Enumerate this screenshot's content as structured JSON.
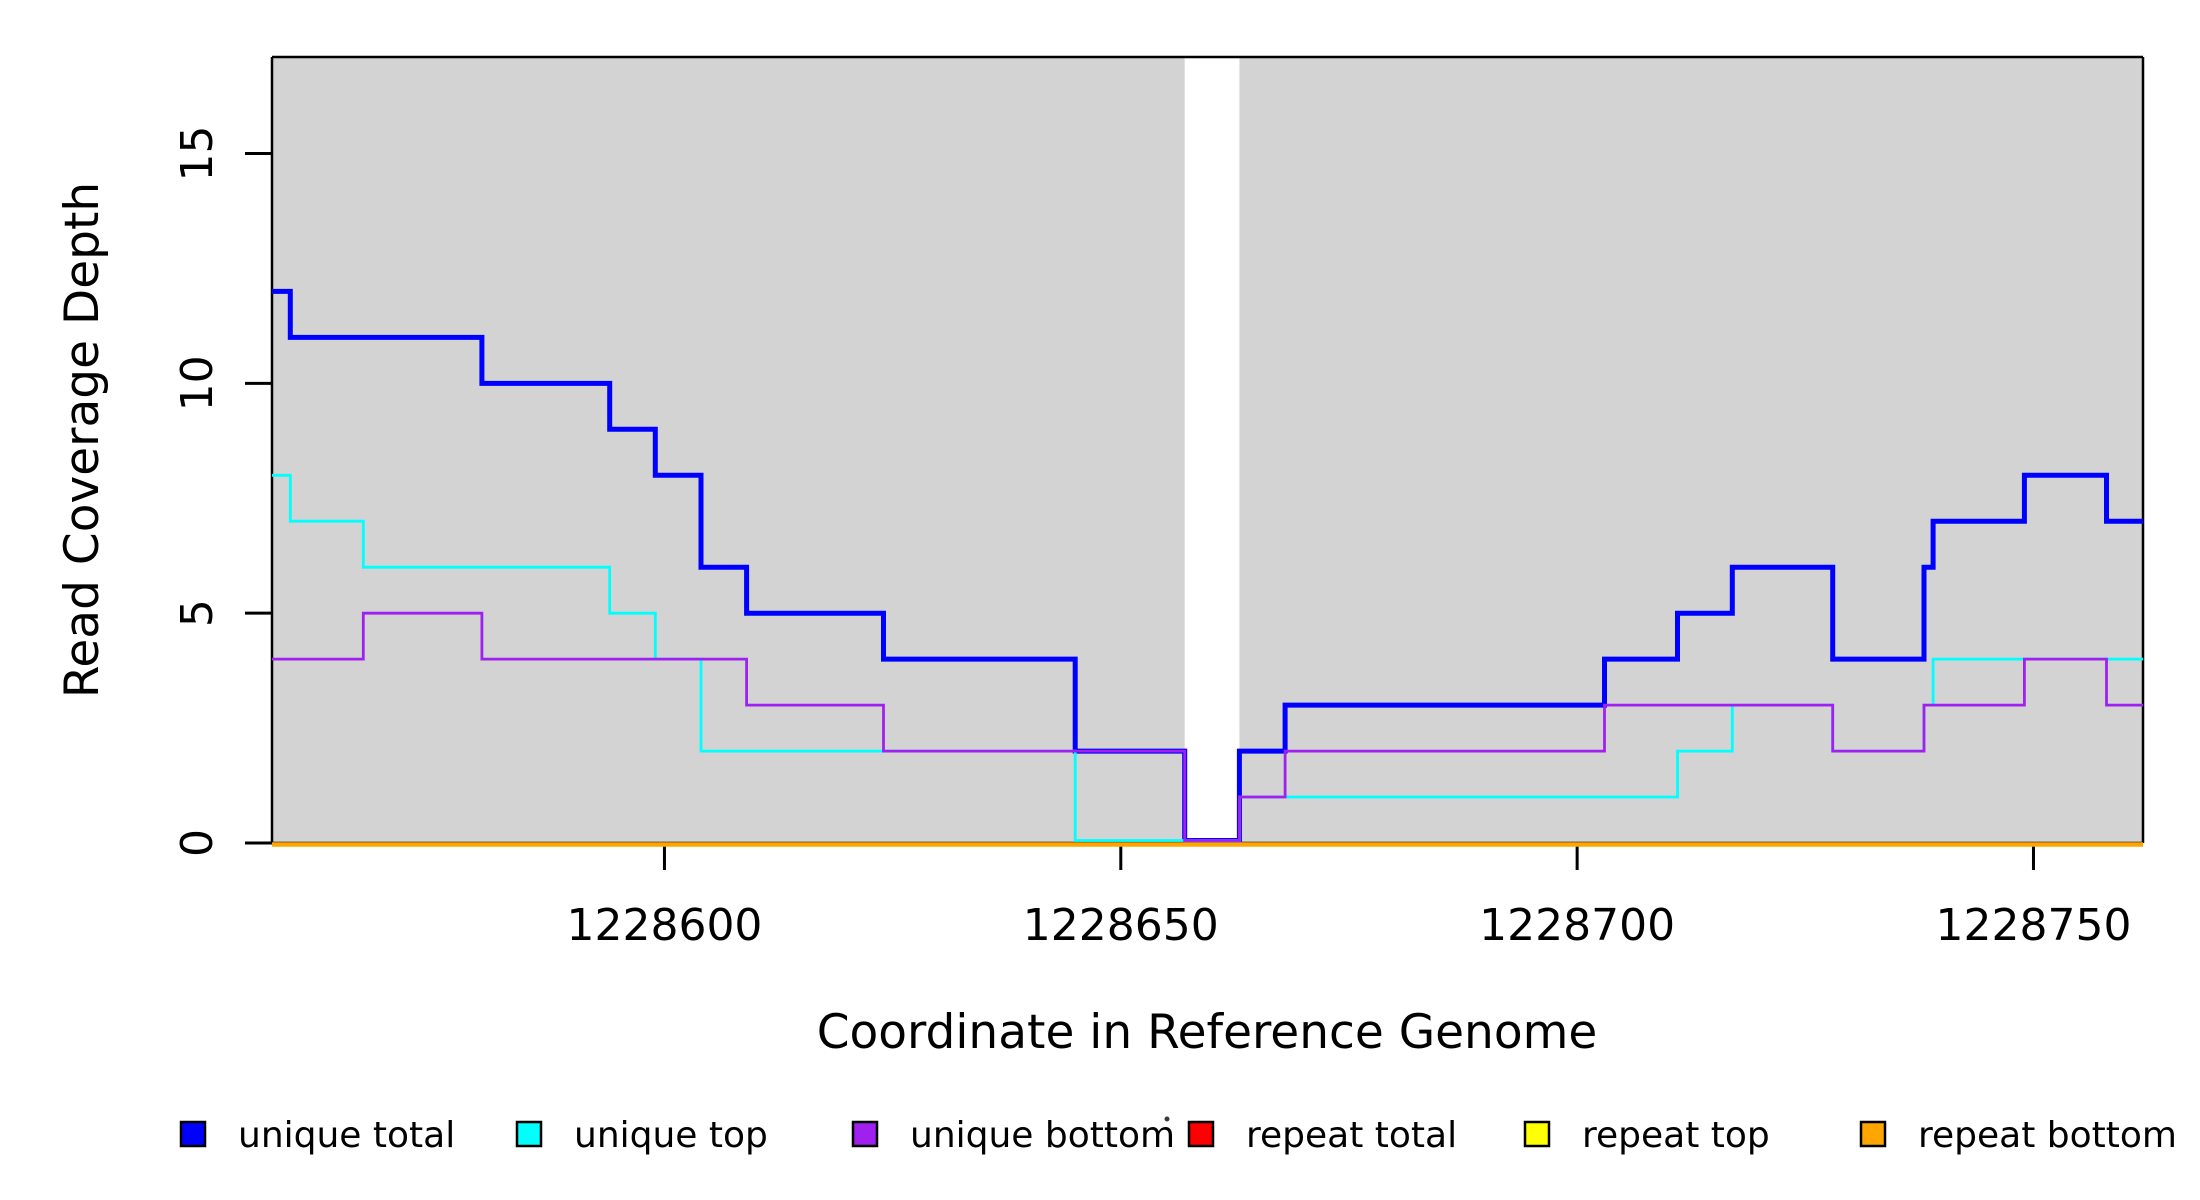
{
  "figure": {
    "background_color": "#ffffff",
    "plot_band_color": "#d3d3d3",
    "axis_color": "#000000"
  },
  "chart_data": {
    "type": "line",
    "style": "step",
    "title": "",
    "xlabel": "Coordinate in Reference Genome",
    "ylabel": "Read Coverage Depth",
    "xlim": [
      1228557,
      1228762
    ],
    "ylim": [
      0,
      17.1
    ],
    "x_ticks": [
      1228600,
      1228650,
      1228700,
      1228750
    ],
    "y_ticks": [
      0,
      5,
      10,
      15
    ],
    "grid": false,
    "legend_position": "bottom",
    "plot_background": "#d3d3d3",
    "gap_band": {
      "from": 1228657,
      "to": 1228663,
      "color": "#ffffff"
    },
    "series": [
      {
        "name": "unique total",
        "color": "#0000ff",
        "group": "unique",
        "width": 5,
        "points": [
          [
            1228557,
            12
          ],
          [
            1228559,
            11
          ],
          [
            1228580,
            10
          ],
          [
            1228594,
            9
          ],
          [
            1228599,
            8
          ],
          [
            1228604,
            6
          ],
          [
            1228609,
            5
          ],
          [
            1228624,
            4
          ],
          [
            1228645,
            2
          ],
          [
            1228657,
            0
          ],
          [
            1228663,
            2
          ],
          [
            1228668,
            3
          ],
          [
            1228703,
            4
          ],
          [
            1228711,
            5
          ],
          [
            1228717,
            6
          ],
          [
            1228728,
            4
          ],
          [
            1228738,
            6
          ],
          [
            1228739,
            7
          ],
          [
            1228749,
            8
          ],
          [
            1228758,
            7
          ],
          [
            1228762,
            7
          ]
        ]
      },
      {
        "name": "unique top",
        "color": "#00ffff",
        "group": "unique",
        "width": 2.8,
        "points": [
          [
            1228557,
            8
          ],
          [
            1228559,
            7
          ],
          [
            1228567,
            6
          ],
          [
            1228594,
            5
          ],
          [
            1228599,
            4
          ],
          [
            1228604,
            2
          ],
          [
            1228645,
            0
          ],
          [
            1228663,
            1
          ],
          [
            1228711,
            2
          ],
          [
            1228717,
            3
          ],
          [
            1228728,
            2
          ],
          [
            1228738,
            3
          ],
          [
            1228739,
            4
          ],
          [
            1228762,
            4
          ]
        ]
      },
      {
        "name": "unique bottom",
        "color": "#a020f0",
        "group": "unique",
        "width": 2.8,
        "points": [
          [
            1228557,
            4
          ],
          [
            1228567,
            5
          ],
          [
            1228580,
            4
          ],
          [
            1228609,
            3
          ],
          [
            1228624,
            2
          ],
          [
            1228657,
            0
          ],
          [
            1228663,
            1
          ],
          [
            1228668,
            2
          ],
          [
            1228703,
            3
          ],
          [
            1228728,
            2
          ],
          [
            1228738,
            3
          ],
          [
            1228749,
            4
          ],
          [
            1228758,
            3
          ],
          [
            1228762,
            3
          ]
        ]
      },
      {
        "name": "repeat total",
        "color": "#ff0000",
        "group": "repeat",
        "width": 3.5,
        "points": [
          [
            1228557,
            0
          ],
          [
            1228762,
            0
          ]
        ]
      },
      {
        "name": "repeat top",
        "color": "#ffff00",
        "group": "repeat",
        "width": 3.5,
        "points": [
          [
            1228557,
            0
          ],
          [
            1228762,
            0
          ]
        ]
      },
      {
        "name": "repeat bottom",
        "color": "#ffa500",
        "group": "repeat",
        "width": 4.5,
        "points": [
          [
            1228557,
            0
          ],
          [
            1228762,
            0
          ]
        ]
      }
    ]
  }
}
